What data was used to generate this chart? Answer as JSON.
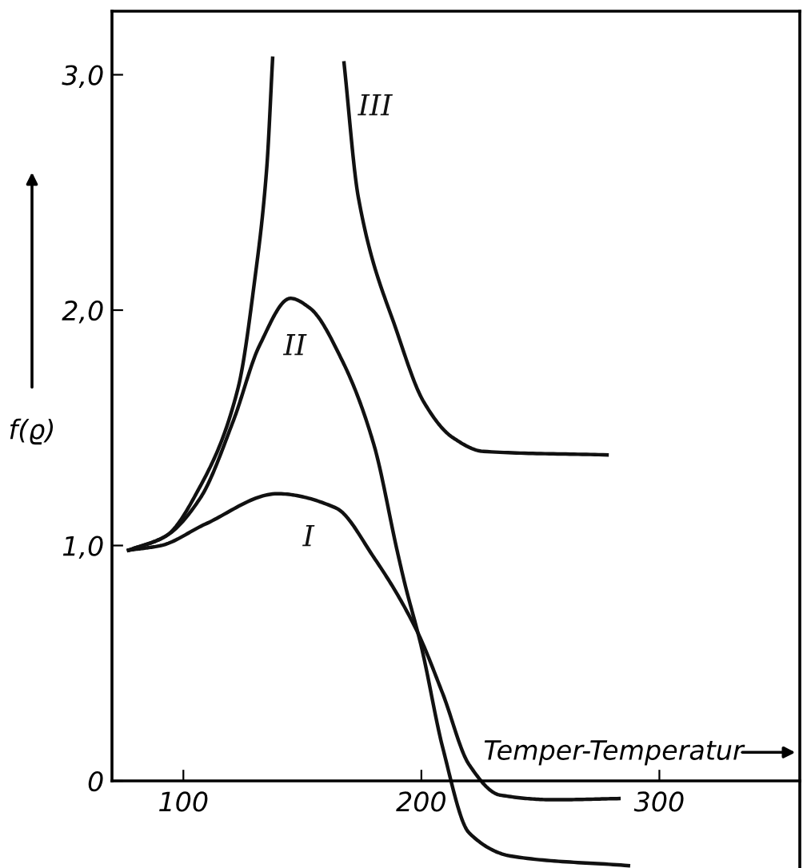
{
  "chart_data": {
    "type": "line",
    "xlabel": "Temper-Temperatur",
    "ylabel": "f(ϱ)",
    "xlim": [
      70,
      359
    ],
    "ylim": [
      -0.37,
      3.27
    ],
    "xticks": [
      100,
      200,
      300
    ],
    "yticks": [
      {
        "value": 0,
        "label": "0"
      },
      {
        "value": 1,
        "label": "1,0"
      },
      {
        "value": 2,
        "label": "2,0"
      },
      {
        "value": 3,
        "label": "3,0"
      }
    ],
    "grid": false,
    "legend": false,
    "marker": "none",
    "line_style": "solid",
    "series": [
      {
        "name": "I",
        "color": "#111111",
        "x": [
          77,
          90.6,
          109,
          139.5,
          164,
          180,
          198,
          209,
          220,
          233,
          256,
          283
        ],
        "values": [
          0.98,
          1.0,
          1.09,
          1.22,
          1.16,
          0.95,
          0.64,
          0.37,
          0.07,
          -0.06,
          -0.08,
          -0.075
        ]
      },
      {
        "name": "II",
        "color": "#111111",
        "x": [
          77,
          92.6,
          107,
          121,
          132,
          145,
          153,
          167,
          180,
          190,
          193,
          200,
          209,
          220,
          238,
          287
        ],
        "values": [
          0.98,
          1.04,
          1.2,
          1.53,
          1.85,
          2.05,
          2.01,
          1.78,
          1.43,
          0.97,
          0.84,
          0.57,
          0.14,
          -0.22,
          -0.32,
          -0.36
        ]
      },
      {
        "name": "III",
        "color": "#111111",
        "x": [
          77,
          92.6,
          107,
          123,
          130,
          135,
          137.5,
          null,
          167.5,
          173.5,
          190,
          201,
          213,
          226,
          278
        ],
        "values": [
          0.98,
          1.04,
          1.25,
          1.67,
          2.13,
          2.6,
          3.07,
          null,
          3.05,
          2.48,
          1.9,
          1.61,
          1.46,
          1.4,
          1.385
        ]
      }
    ]
  }
}
